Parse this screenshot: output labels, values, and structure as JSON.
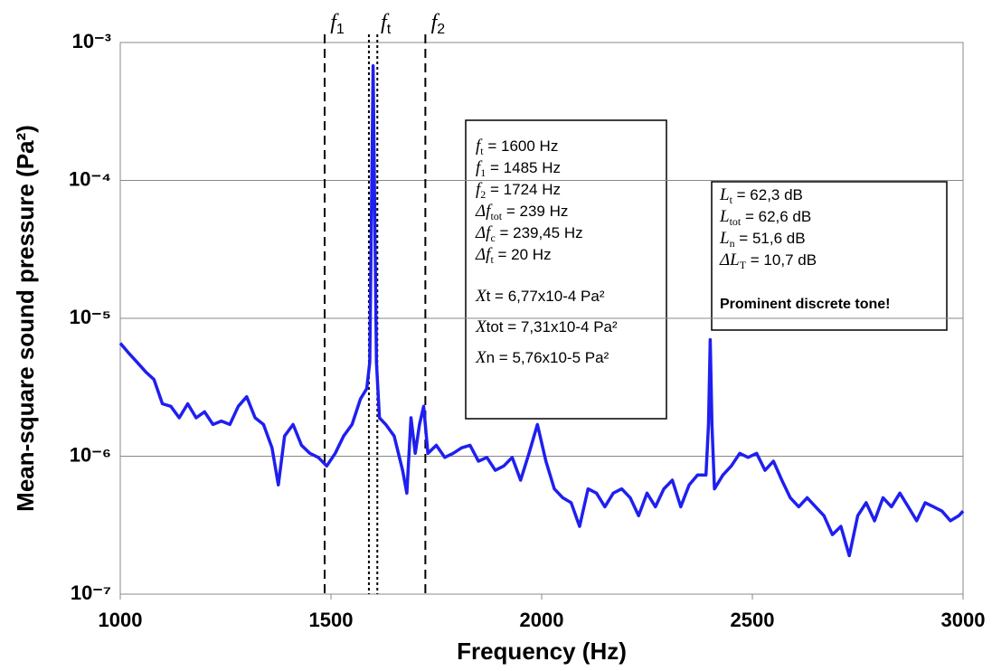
{
  "chart_data": {
    "type": "line",
    "xlabel": "Frequency (Hz)",
    "ylabel": "Mean-square sound pressure (Pa²)",
    "log_y": true,
    "grid": true,
    "color": "#1f1ff0",
    "xlim": [
      1000,
      3000
    ],
    "xticks": [
      1000,
      1500,
      2000,
      2500,
      3000
    ],
    "ylim": [
      1e-07,
      0.001
    ],
    "yticks": [
      {
        "value": 1e-07,
        "label": "10⁻⁷"
      },
      {
        "value": 1e-06,
        "label": "10⁻⁶"
      },
      {
        "value": 1e-05,
        "label": "10⁻⁵"
      },
      {
        "value": 0.0001,
        "label": "10⁻⁴"
      },
      {
        "value": 0.001,
        "label": "10⁻³"
      }
    ],
    "x": [
      1000,
      1020,
      1040,
      1060,
      1080,
      1100,
      1120,
      1140,
      1160,
      1180,
      1200,
      1220,
      1240,
      1260,
      1280,
      1300,
      1320,
      1340,
      1360,
      1375,
      1390,
      1410,
      1430,
      1450,
      1470,
      1490,
      1510,
      1530,
      1550,
      1570,
      1585,
      1592,
      1597,
      1600,
      1603,
      1608,
      1615,
      1630,
      1650,
      1670,
      1680,
      1690,
      1700,
      1710,
      1720,
      1730,
      1750,
      1770,
      1790,
      1810,
      1830,
      1850,
      1870,
      1890,
      1910,
      1930,
      1950,
      1970,
      1990,
      2010,
      2030,
      2050,
      2070,
      2090,
      2110,
      2130,
      2150,
      2170,
      2190,
      2210,
      2230,
      2250,
      2270,
      2290,
      2310,
      2330,
      2350,
      2370,
      2390,
      2396,
      2400,
      2404,
      2410,
      2430,
      2450,
      2470,
      2490,
      2510,
      2530,
      2550,
      2570,
      2590,
      2610,
      2630,
      2650,
      2670,
      2690,
      2710,
      2730,
      2750,
      2770,
      2790,
      2810,
      2830,
      2850,
      2870,
      2890,
      2910,
      2930,
      2950,
      2970,
      2990,
      3000
    ],
    "values": [
      6.6e-06,
      5.6e-06,
      4.8e-06,
      4.1e-06,
      3.6e-06,
      2.4e-06,
      2.3e-06,
      1.9e-06,
      2.4e-06,
      1.9e-06,
      2.1e-06,
      1.7e-06,
      1.8e-06,
      1.7e-06,
      2.3e-06,
      2.7e-06,
      1.9e-06,
      1.7e-06,
      1.15e-06,
      6.2e-07,
      1.4e-06,
      1.7e-06,
      1.2e-06,
      1.05e-06,
      9.8e-07,
      8.5e-07,
      1.05e-06,
      1.4e-06,
      1.7e-06,
      2.6e-06,
      3.1e-06,
      4.8e-06,
      0.0001,
      0.000677,
      0.0001,
      4.8e-06,
      1.9e-06,
      1.7e-06,
      1.4e-06,
      7.9e-07,
      5.4e-07,
      1.9e-06,
      1.05e-06,
      1.7e-06,
      2.3e-06,
      1.05e-06,
      1.2e-06,
      9.8e-07,
      1.05e-06,
      1.15e-06,
      1.2e-06,
      9.2e-07,
      9.8e-07,
      7.9e-07,
      8.5e-07,
      9.8e-07,
      6.7e-07,
      1.05e-06,
      1.7e-06,
      9.2e-07,
      5.8e-07,
      5e-07,
      4.6e-07,
      3.1e-07,
      5.8e-07,
      5.4e-07,
      4.3e-07,
      5.4e-07,
      5.8e-07,
      5e-07,
      3.7e-07,
      5.4e-07,
      4.3e-07,
      5.8e-07,
      6.7e-07,
      4.3e-07,
      6.2e-07,
      7.3e-07,
      7.3e-07,
      1.7e-06,
      7e-06,
      1.7e-06,
      5.8e-07,
      7.3e-07,
      8.5e-07,
      1.05e-06,
      9.8e-07,
      1.05e-06,
      7.9e-07,
      9.2e-07,
      6.7e-07,
      5e-07,
      4.3e-07,
      5e-07,
      4.3e-07,
      3.7e-07,
      2.7e-07,
      3.1e-07,
      1.9e-07,
      3.7e-07,
      4.6e-07,
      3.4e-07,
      5e-07,
      4.3e-07,
      5.4e-07,
      4.3e-07,
      3.4e-07,
      4.6e-07,
      4.3e-07,
      4e-07,
      3.4e-07,
      3.7e-07,
      4e-07
    ],
    "vlines": [
      {
        "x": 1485,
        "style": "dashed"
      },
      {
        "x": 1590,
        "style": "dotted"
      },
      {
        "x": 1610,
        "style": "dotted"
      },
      {
        "x": 1724,
        "style": "dashed"
      }
    ],
    "vline_labels": [
      {
        "x": 1485,
        "sym": "f",
        "sub": "1"
      },
      {
        "x": 1600,
        "sym": "f",
        "sub": "t"
      },
      {
        "x": 1724,
        "sym": "f",
        "sub": "2"
      }
    ],
    "annotations": [
      {
        "lines": [
          {
            "sym": "f",
            "sub": "t",
            "rest": " = 1600 Hz"
          },
          {
            "sym": "f",
            "sub": "1",
            "rest": " = 1485 Hz"
          },
          {
            "sym": "f",
            "sub": "2",
            "rest": " = 1724 Hz"
          },
          {
            "sym": "Δf",
            "sub": "tot",
            "rest": " = 239 Hz"
          },
          {
            "sym": "Δf",
            "sub": "c",
            "rest": " = 239,45 Hz"
          },
          {
            "sym": "Δf",
            "sub": "t",
            "rest": " = 20 Hz"
          },
          {
            "sym": "X",
            "rest": "t = 6,77x10-4 Pa²"
          },
          {
            "sym": "X",
            "rest": "tot = 7,31x10-4 Pa²"
          },
          {
            "sym": "X",
            "rest": "n = 5,76x10-5 Pa²"
          }
        ]
      },
      {
        "lines": [
          {
            "sym": "L",
            "sub": "t",
            "rest": " = 62,3 dB"
          },
          {
            "sym": "L",
            "sub": "tot",
            "rest": " = 62,6 dB"
          },
          {
            "sym": "L",
            "sub": "n",
            "rest": " = 51,6 dB"
          },
          {
            "sym": "ΔL",
            "sub": "T",
            "rest": " = 10,7 dB"
          }
        ],
        "note": "Prominent discrete tone!"
      }
    ]
  }
}
